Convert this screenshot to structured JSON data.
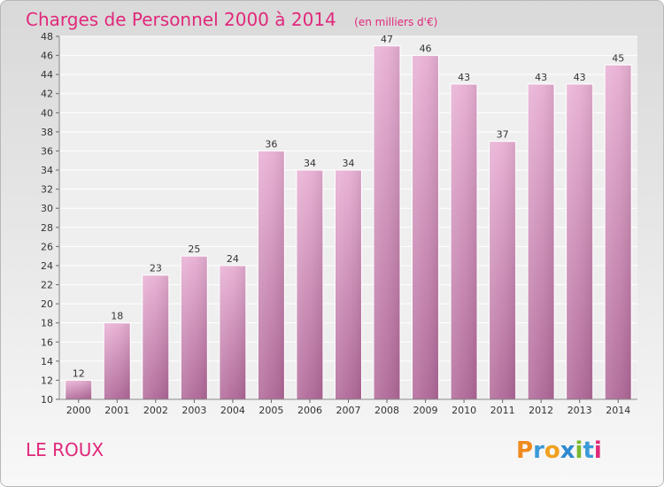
{
  "chart_data": {
    "type": "bar",
    "title": "Charges de Personnel 2000 à 2014",
    "subtitle": "(en milliers d'€)",
    "categories": [
      "2000",
      "2001",
      "2002",
      "2003",
      "2004",
      "2005",
      "2006",
      "2007",
      "2008",
      "2009",
      "2010",
      "2011",
      "2012",
      "2013",
      "2014"
    ],
    "values": [
      12,
      18,
      23,
      25,
      24,
      36,
      34,
      34,
      47,
      46,
      43,
      37,
      43,
      43,
      45
    ],
    "ylim": [
      10,
      48
    ],
    "yticks": [
      10,
      12,
      14,
      16,
      18,
      20,
      22,
      24,
      26,
      28,
      30,
      32,
      34,
      36,
      38,
      40,
      42,
      44,
      46,
      48
    ],
    "grid": true,
    "bar_color": "#d070a8"
  },
  "footer": {
    "place": "LE ROUX",
    "logo": "Proxiti"
  },
  "colors": {
    "title": "#e0287a",
    "place": "#e0287a",
    "logo_p": "#f08a1e",
    "logo_r": "#3a9ad8",
    "logo_o": "#f0a01e",
    "logo_x": "#2e8ad0",
    "logo_i": "#7ab82e",
    "logo_t": "#3a9ad8",
    "logo_i2": "#e0287a"
  }
}
